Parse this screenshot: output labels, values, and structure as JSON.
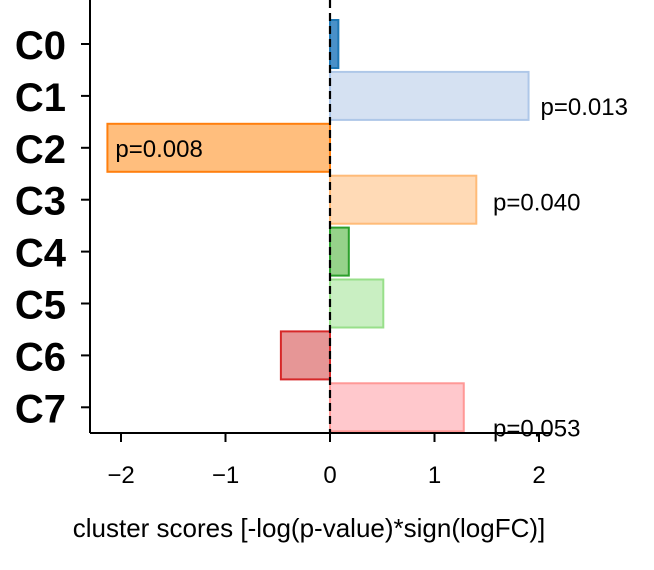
{
  "chart_data": {
    "type": "bar",
    "orientation": "horizontal",
    "categories": [
      "C0",
      "C1",
      "C2",
      "C3",
      "C4",
      "C5",
      "C6",
      "C7"
    ],
    "values": [
      0.08,
      1.9,
      -2.13,
      1.4,
      0.18,
      0.51,
      -0.47,
      1.28
    ],
    "bar_labels": [
      "",
      "p=0.013",
      "p=0.008",
      "p=0.040",
      "",
      "",
      "",
      "p=0.053"
    ],
    "fill_colors": [
      "#4a90c8",
      "#d5e1f2",
      "#ffbe7d",
      "#ffdab6",
      "#96d28a",
      "#c9efc2",
      "#e69696",
      "#ffc8cc"
    ],
    "edge_colors": [
      "#1f77b4",
      "#aec7e8",
      "#ff7f0e",
      "#ffbb78",
      "#2ca02c",
      "#98df8a",
      "#d62728",
      "#ff9896"
    ],
    "xlabel": "cluster scores [-log(p-value)*sign(logFC)]",
    "ylabel": "",
    "xlim": [
      -2.3,
      2.1
    ],
    "xticks": [
      -2,
      -1,
      0,
      1,
      2
    ],
    "xtick_labels": [
      "−2",
      "−1",
      "0",
      "1",
      "2"
    ],
    "zero_line": "dashed",
    "grid": false,
    "legend": "none"
  }
}
